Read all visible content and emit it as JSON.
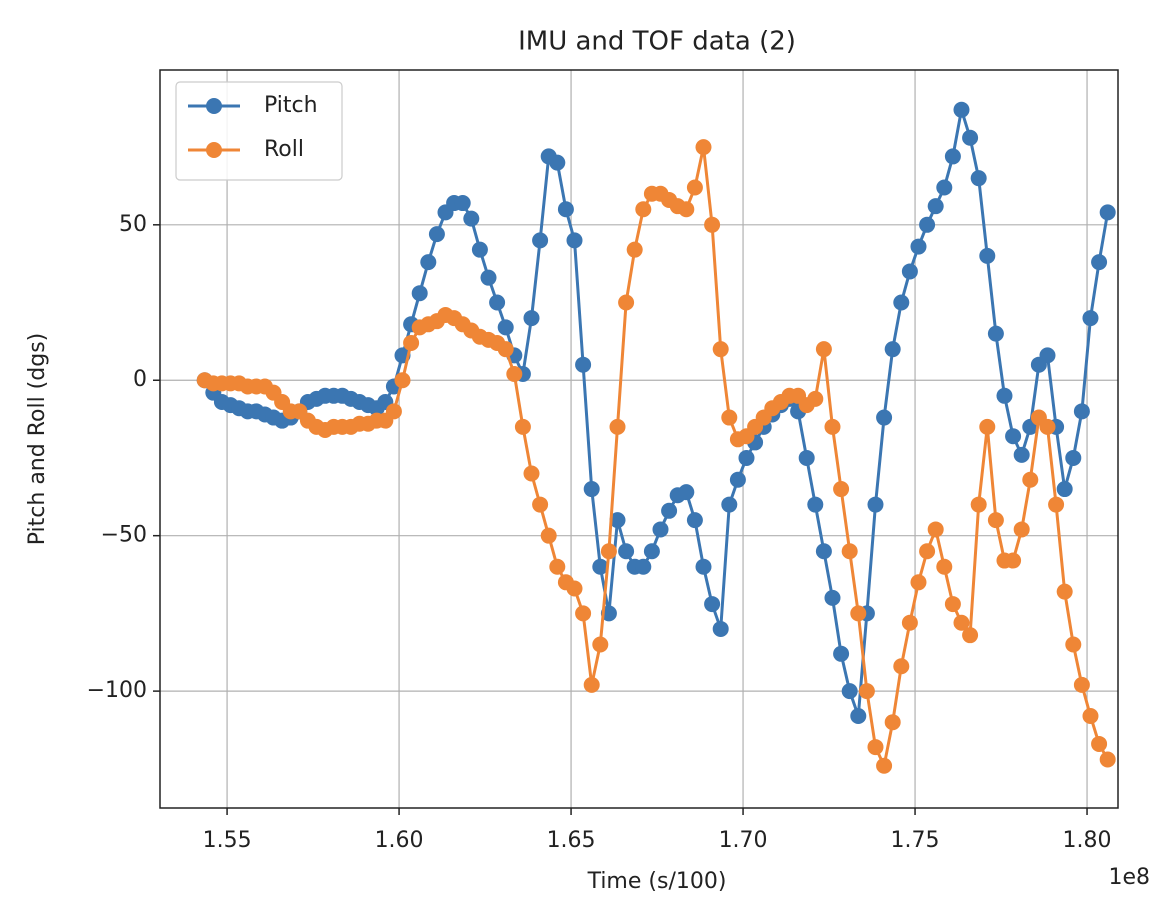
{
  "chart_data": {
    "type": "line",
    "title": "IMU and TOF data (2)",
    "x_label": "Time (s/100)",
    "y_label": "Pitch and Roll (dgs)",
    "x_offset_label": "1e8",
    "x": [
      1.5435,
      1.546,
      1.5485,
      1.551,
      1.5535,
      1.556,
      1.5585,
      1.561,
      1.5635,
      1.566,
      1.5685,
      1.571,
      1.5735,
      1.576,
      1.5785,
      1.581,
      1.5835,
      1.586,
      1.5885,
      1.591,
      1.5935,
      1.596,
      1.5985,
      1.601,
      1.6035,
      1.606,
      1.6085,
      1.611,
      1.6135,
      1.616,
      1.6185,
      1.621,
      1.6235,
      1.626,
      1.6285,
      1.631,
      1.6335,
      1.636,
      1.6385,
      1.641,
      1.6435,
      1.646,
      1.6485,
      1.651,
      1.6535,
      1.656,
      1.6585,
      1.661,
      1.6635,
      1.666,
      1.6685,
      1.671,
      1.6735,
      1.676,
      1.6785,
      1.681,
      1.6835,
      1.686,
      1.6885,
      1.691,
      1.6935,
      1.696,
      1.6985,
      1.701,
      1.7035,
      1.706,
      1.7085,
      1.711,
      1.7135,
      1.716,
      1.7185,
      1.721,
      1.7235,
      1.726,
      1.7285,
      1.731,
      1.7335,
      1.736,
      1.7385,
      1.741,
      1.7435,
      1.746,
      1.7485,
      1.751,
      1.7535,
      1.756,
      1.7585,
      1.761,
      1.7635,
      1.766,
      1.7685,
      1.771,
      1.7735,
      1.776,
      1.7785,
      1.781,
      1.7835,
      1.786,
      1.7885,
      1.791,
      1.7935,
      1.796,
      1.7985,
      1.801,
      1.8035,
      1.806
    ],
    "series": [
      {
        "name": "Pitch",
        "color": "#3b76b2",
        "values": [
          0,
          -4,
          -7,
          -8,
          -9,
          -10,
          -10,
          -11,
          -12,
          -13,
          -12,
          -10,
          -7,
          -6,
          -5,
          -5,
          -5,
          -6,
          -7,
          -8,
          -9,
          -7,
          -2,
          8,
          18,
          28,
          38,
          47,
          54,
          57,
          57,
          52,
          42,
          33,
          25,
          17,
          8,
          2,
          20,
          45,
          72,
          70,
          55,
          45,
          5,
          -35,
          -60,
          -75,
          -45,
          -55,
          -60,
          -60,
          -55,
          -48,
          -42,
          -37,
          -36,
          -45,
          -60,
          -72,
          -80,
          -40,
          -32,
          -25,
          -20,
          -15,
          -11,
          -8,
          -6,
          -10,
          -25,
          -40,
          -55,
          -70,
          -88,
          -100,
          -108,
          -75,
          -40,
          -12,
          10,
          25,
          35,
          43,
          50,
          56,
          62,
          72,
          87,
          78,
          65,
          40,
          15,
          -5,
          -18,
          -24,
          -15,
          5,
          8,
          -15,
          -35,
          -25,
          -10,
          20,
          38,
          54
        ]
      },
      {
        "name": "Roll",
        "color": "#ef8636",
        "values": [
          0,
          -1,
          -1,
          -1,
          -1,
          -2,
          -2,
          -2,
          -4,
          -7,
          -10,
          -10,
          -13,
          -15,
          -16,
          -15,
          -15,
          -15,
          -14,
          -14,
          -13,
          -13,
          -10,
          0,
          12,
          17,
          18,
          19,
          21,
          20,
          18,
          16,
          14,
          13,
          12,
          10,
          2,
          -15,
          -30,
          -40,
          -50,
          -60,
          -65,
          -67,
          -75,
          -98,
          -85,
          -55,
          -15,
          25,
          42,
          55,
          60,
          60,
          58,
          56,
          55,
          62,
          75,
          50,
          10,
          -12,
          -19,
          -18,
          -15,
          -12,
          -9,
          -7,
          -5,
          -5,
          -8,
          -6,
          10,
          -15,
          -35,
          -55,
          -75,
          -100,
          -118,
          -124,
          -110,
          -92,
          -78,
          -65,
          -55,
          -48,
          -60,
          -72,
          -78,
          -82,
          -40,
          -15,
          -45,
          -58,
          -58,
          -48,
          -32,
          -12,
          -15,
          -40,
          -68,
          -85,
          -98,
          -108,
          -117,
          -122
        ]
      }
    ],
    "xlim": [
      1.5305,
      1.809
    ],
    "xticks": [
      1.55,
      {
        "value": 1.6,
        "label": "1.60"
      },
      1.65,
      {
        "value": 1.7,
        "label": "1.70"
      },
      1.75,
      {
        "value": 1.8,
        "label": "1.80"
      }
    ],
    "ylim": [
      -137.6,
      99.8
    ],
    "yticks": [
      {
        "value": -100,
        "label": "−100"
      },
      {
        "value": -50,
        "label": "−50"
      },
      0,
      50
    ],
    "grid": true,
    "legend": "upper left"
  }
}
